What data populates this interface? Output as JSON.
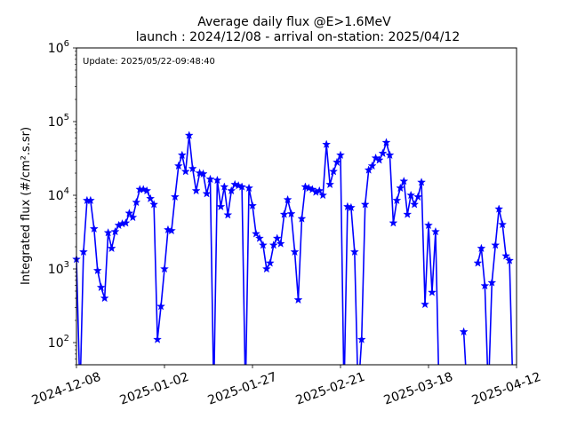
{
  "chart_data": {
    "type": "line",
    "title": "Average daily flux @E>1.6MeV",
    "subtitle": "launch : 2024/12/08 - arrival on-station: 2025/04/12",
    "xlabel": "",
    "ylabel": "Integrated flux (#/cm².s.sr)",
    "annotation": "Update: 2025/05/22-09:48:40",
    "yscale": "log",
    "xlim": [
      "2024-12-08",
      "2025-04-12"
    ],
    "ylim": [
      50,
      1000000
    ],
    "x_tick_labels": [
      "2024-12-08",
      "2025-01-02",
      "2025-01-27",
      "2025-02-21",
      "2025-03-18",
      "2025-04-12"
    ],
    "y_tick_labels": [
      {
        "base": "10",
        "exp": "2",
        "value": 100
      },
      {
        "base": "10",
        "exp": "3",
        "value": 1000
      },
      {
        "base": "10",
        "exp": "4",
        "value": 10000
      },
      {
        "base": "10",
        "exp": "5",
        "value": 100000
      },
      {
        "base": "10",
        "exp": "6",
        "value": 1000000
      }
    ],
    "grid": false,
    "legend": "none",
    "series": [
      {
        "color": "#0000ff",
        "marker": "star",
        "points": [
          [
            "2024-12-08",
            1350
          ],
          [
            "2024-12-09",
            20
          ],
          [
            "2024-12-10",
            1700
          ],
          [
            "2024-12-11",
            8500
          ],
          [
            "2024-12-12",
            8500
          ],
          [
            "2024-12-13",
            3500
          ],
          [
            "2024-12-14",
            950
          ],
          [
            "2024-12-15",
            560
          ],
          [
            "2024-12-16",
            400
          ],
          [
            "2024-12-17",
            3100
          ],
          [
            "2024-12-18",
            1900
          ],
          [
            "2024-12-19",
            3200
          ],
          [
            "2024-12-20",
            3900
          ],
          [
            "2024-12-21",
            4100
          ],
          [
            "2024-12-22",
            4200
          ],
          [
            "2024-12-23",
            5700
          ],
          [
            "2024-12-24",
            5000
          ],
          [
            "2024-12-25",
            8000
          ],
          [
            "2024-12-26",
            12000
          ],
          [
            "2024-12-27",
            12000
          ],
          [
            "2024-12-28",
            11500
          ],
          [
            "2024-12-29",
            9000
          ],
          [
            "2024-12-30",
            7500
          ],
          [
            "2024-12-31",
            110
          ],
          [
            "2025-01-01",
            310
          ],
          [
            "2025-01-02",
            1000
          ],
          [
            "2025-01-03",
            3400
          ],
          [
            "2025-01-04",
            3300
          ],
          [
            "2025-01-05",
            9500
          ],
          [
            "2025-01-06",
            25000
          ],
          [
            "2025-01-07",
            35000
          ],
          [
            "2025-01-08",
            21000
          ],
          [
            "2025-01-09",
            65000
          ],
          [
            "2025-01-10",
            23000
          ],
          [
            "2025-01-11",
            11500
          ],
          [
            "2025-01-12",
            20000
          ],
          [
            "2025-01-13",
            19500
          ],
          [
            "2025-01-14",
            10500
          ],
          [
            "2025-01-15",
            16500
          ],
          [
            "2025-01-16",
            20
          ],
          [
            "2025-01-17",
            16000
          ],
          [
            "2025-01-18",
            7000
          ],
          [
            "2025-01-19",
            13000
          ],
          [
            "2025-01-20",
            5400
          ],
          [
            "2025-01-21",
            11500
          ],
          [
            "2025-01-22",
            14000
          ],
          [
            "2025-01-23",
            13500
          ],
          [
            "2025-01-24",
            13000
          ],
          [
            "2025-01-25",
            20
          ],
          [
            "2025-01-26",
            12500
          ],
          [
            "2025-01-27",
            7200
          ],
          [
            "2025-01-28",
            3000
          ],
          [
            "2025-01-29",
            2600
          ],
          [
            "2025-01-30",
            2100
          ],
          [
            "2025-01-31",
            1000
          ],
          [
            "2025-02-01",
            1200
          ],
          [
            "2025-02-02",
            2100
          ],
          [
            "2025-02-03",
            2600
          ],
          [
            "2025-02-04",
            2200
          ],
          [
            "2025-02-05",
            5500
          ],
          [
            "2025-02-06",
            8700
          ],
          [
            "2025-02-07",
            5600
          ],
          [
            "2025-02-08",
            1700
          ],
          [
            "2025-02-09",
            380
          ],
          [
            "2025-02-10",
            4800
          ],
          [
            "2025-02-11",
            13000
          ],
          [
            "2025-02-12",
            12500
          ],
          [
            "2025-02-13",
            12000
          ],
          [
            "2025-02-14",
            11000
          ],
          [
            "2025-02-15",
            11500
          ],
          [
            "2025-02-16",
            10000
          ],
          [
            "2025-02-17",
            49000
          ],
          [
            "2025-02-18",
            14000
          ],
          [
            "2025-02-19",
            21000
          ],
          [
            "2025-02-20",
            28000
          ],
          [
            "2025-02-21",
            35000
          ],
          [
            "2025-02-22",
            20
          ],
          [
            "2025-02-23",
            7000
          ],
          [
            "2025-02-24",
            6800
          ],
          [
            "2025-02-25",
            1700
          ],
          [
            "2025-02-26",
            20
          ],
          [
            "2025-02-27",
            110
          ],
          [
            "2025-02-28",
            7500
          ],
          [
            "2025-03-01",
            22000
          ],
          [
            "2025-03-02",
            25000
          ],
          [
            "2025-03-03",
            32000
          ],
          [
            "2025-03-04",
            30000
          ],
          [
            "2025-03-05",
            37000
          ],
          [
            "2025-03-06",
            52000
          ],
          [
            "2025-03-07",
            35000
          ],
          [
            "2025-03-08",
            4200
          ],
          [
            "2025-03-09",
            8500
          ],
          [
            "2025-03-10",
            12500
          ],
          [
            "2025-03-11",
            15500
          ],
          [
            "2025-03-12",
            5500
          ],
          [
            "2025-03-13",
            10000
          ],
          [
            "2025-03-14",
            7500
          ],
          [
            "2025-03-15",
            9500
          ],
          [
            "2025-03-16",
            15000
          ],
          [
            "2025-03-17",
            330
          ],
          [
            "2025-03-18",
            3900
          ],
          [
            "2025-03-19",
            480
          ],
          [
            "2025-03-20",
            3200
          ],
          [
            "2025-03-21",
            20
          ],
          null,
          [
            "2025-03-28",
            140
          ],
          [
            "2025-03-29",
            20
          ],
          null,
          [
            "2025-04-01",
            1200
          ],
          [
            "2025-04-02",
            1900
          ],
          [
            "2025-04-03",
            590
          ],
          [
            "2025-04-04",
            20
          ],
          [
            "2025-04-05",
            650
          ],
          [
            "2025-04-06",
            2100
          ],
          [
            "2025-04-07",
            6500
          ],
          [
            "2025-04-08",
            4000
          ],
          [
            "2025-04-09",
            1500
          ],
          [
            "2025-04-10",
            1300
          ],
          [
            "2025-04-11",
            20
          ]
        ]
      }
    ]
  }
}
